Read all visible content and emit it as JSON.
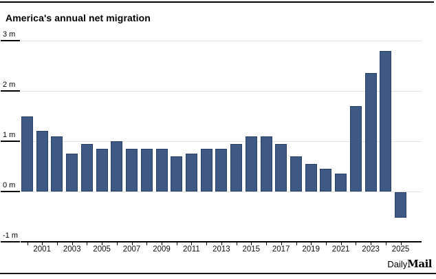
{
  "header": {
    "title": "America's annual net migration"
  },
  "footer": {
    "brand_daily": "Daily",
    "brand_mail": "Mail"
  },
  "chart_data": {
    "type": "bar",
    "title": "America's annual net migration",
    "categories": [
      2000,
      2001,
      2002,
      2003,
      2004,
      2005,
      2006,
      2007,
      2008,
      2009,
      2010,
      2011,
      2012,
      2013,
      2014,
      2015,
      2016,
      2017,
      2018,
      2019,
      2020,
      2021,
      2022,
      2023,
      2024,
      2025
    ],
    "values": [
      1.5,
      1.2,
      1.1,
      0.75,
      0.95,
      0.85,
      1.0,
      0.85,
      0.85,
      0.85,
      0.7,
      0.75,
      0.85,
      0.85,
      0.95,
      1.1,
      1.1,
      0.95,
      0.7,
      0.55,
      0.45,
      0.35,
      1.7,
      2.35,
      2.8,
      -0.5
    ],
    "unit": "millions",
    "ylim": [
      -1,
      3
    ],
    "y_tick_values": [
      3,
      2,
      1,
      0,
      -1
    ],
    "y_tick_labels": [
      "3 m",
      "2 m",
      "1 m",
      "0 m",
      "-1 m"
    ],
    "x_tick_labels": [
      "2001",
      "2003",
      "2005",
      "2007",
      "2009",
      "2011",
      "2013",
      "2015",
      "2017",
      "2019",
      "2021",
      "2023",
      "2025"
    ],
    "grid": true,
    "legend_position": "none",
    "bar_color": "#3e5a84",
    "bar_border_color": "#2a4166",
    "gridline_color": "#e4e4e4",
    "axis_color": "#000000"
  }
}
